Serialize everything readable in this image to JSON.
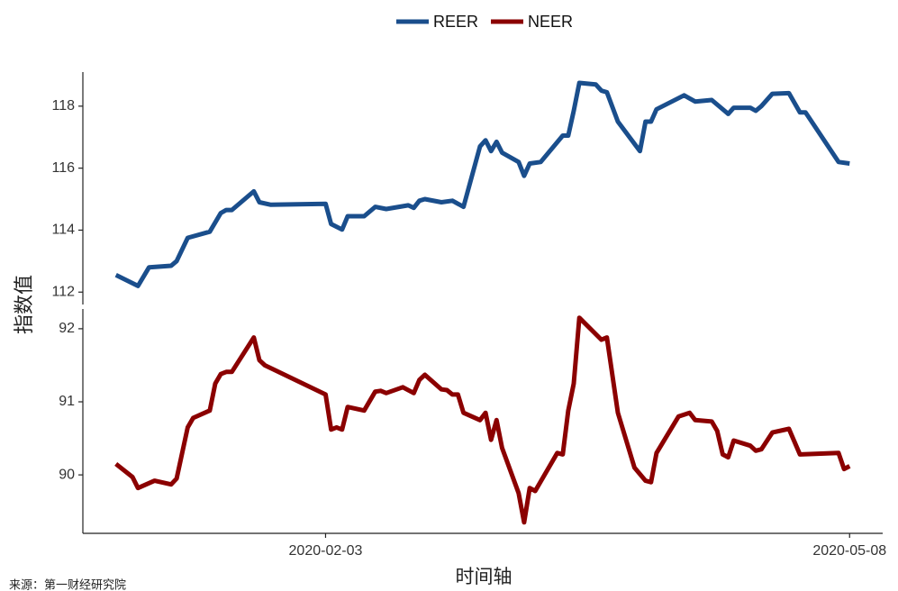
{
  "legend_position": "top",
  "ylabel": "指数值",
  "xlabel": "时间轴",
  "source": "来源：第一财经研究院",
  "chart_data": [
    {
      "type": "line",
      "xlim": [
        "2019-12-21",
        "2020-05-14"
      ],
      "ylim": [
        111.6,
        119.1
      ],
      "yticks": [
        112,
        114,
        116,
        118
      ],
      "x": [
        "2019-12-27",
        "2019-12-31",
        "2020-01-02",
        "2020-01-06",
        "2020-01-07",
        "2020-01-09",
        "2020-01-13",
        "2020-01-15",
        "2020-01-16",
        "2020-01-17",
        "2020-01-21",
        "2020-01-22",
        "2020-01-24",
        "2020-02-03",
        "2020-02-04",
        "2020-02-06",
        "2020-02-07",
        "2020-02-10",
        "2020-02-12",
        "2020-02-14",
        "2020-02-18",
        "2020-02-19",
        "2020-02-20",
        "2020-02-21",
        "2020-02-24",
        "2020-02-26",
        "2020-02-28",
        "2020-03-02",
        "2020-03-03",
        "2020-03-04",
        "2020-03-05",
        "2020-03-06",
        "2020-03-09",
        "2020-03-10",
        "2020-03-11",
        "2020-03-13",
        "2020-03-17",
        "2020-03-18",
        "2020-03-19",
        "2020-03-20",
        "2020-03-23",
        "2020-03-24",
        "2020-03-25",
        "2020-03-27",
        "2020-03-31",
        "2020-04-01",
        "2020-04-02",
        "2020-04-03",
        "2020-04-08",
        "2020-04-10",
        "2020-04-13",
        "2020-04-16",
        "2020-04-17",
        "2020-04-20",
        "2020-04-21",
        "2020-04-22",
        "2020-04-24",
        "2020-04-27",
        "2020-04-29",
        "2020-04-30",
        "2020-05-06",
        "2020-05-08"
      ],
      "series": [
        {
          "name": "REER",
          "color": "#1a4e8c",
          "values": [
            112.55,
            112.2,
            112.8,
            112.85,
            113,
            113.75,
            113.95,
            114.55,
            114.65,
            114.65,
            115.25,
            114.9,
            114.82,
            114.85,
            114.2,
            114.02,
            114.45,
            114.45,
            114.75,
            114.68,
            114.8,
            114.72,
            114.95,
            115,
            114.9,
            114.95,
            114.75,
            116.7,
            116.9,
            116.55,
            116.85,
            116.5,
            116.2,
            115.75,
            116.15,
            116.2,
            117.05,
            117.05,
            117.85,
            118.75,
            118.7,
            118.5,
            118.45,
            117.5,
            116.55,
            117.5,
            117.5,
            117.9,
            118.35,
            118.15,
            118.2,
            117.75,
            117.95,
            117.95,
            117.85,
            118,
            118.4,
            118.42,
            117.8,
            117.8,
            116.2,
            116.15
          ]
        }
      ]
    },
    {
      "type": "line",
      "xlim": [
        "2019-12-21",
        "2020-05-14"
      ],
      "xticks": [
        "2020-02-03",
        "2020-05-08"
      ],
      "ylim": [
        89.2,
        92.27
      ],
      "yticks": [
        90,
        91,
        92
      ],
      "x": [
        "2019-12-27",
        "2019-12-30",
        "2019-12-31",
        "2020-01-03",
        "2020-01-06",
        "2020-01-07",
        "2020-01-09",
        "2020-01-10",
        "2020-01-13",
        "2020-01-14",
        "2020-01-15",
        "2020-01-16",
        "2020-01-17",
        "2020-01-21",
        "2020-01-22",
        "2020-01-23",
        "2020-02-03",
        "2020-02-04",
        "2020-02-05",
        "2020-02-06",
        "2020-02-07",
        "2020-02-10",
        "2020-02-12",
        "2020-02-13",
        "2020-02-14",
        "2020-02-17",
        "2020-02-19",
        "2020-02-20",
        "2020-02-21",
        "2020-02-24",
        "2020-02-25",
        "2020-02-26",
        "2020-02-27",
        "2020-02-28",
        "2020-03-02",
        "2020-03-03",
        "2020-03-04",
        "2020-03-05",
        "2020-03-06",
        "2020-03-09",
        "2020-03-10",
        "2020-03-11",
        "2020-03-12",
        "2020-03-16",
        "2020-03-17",
        "2020-03-18",
        "2020-03-19",
        "2020-03-20",
        "2020-03-24",
        "2020-03-25",
        "2020-03-27",
        "2020-03-30",
        "2020-04-01",
        "2020-04-02",
        "2020-04-03",
        "2020-04-07",
        "2020-04-09",
        "2020-04-10",
        "2020-04-13",
        "2020-04-14",
        "2020-04-15",
        "2020-04-16",
        "2020-04-17",
        "2020-04-20",
        "2020-04-21",
        "2020-04-22",
        "2020-04-24",
        "2020-04-27",
        "2020-04-29",
        "2020-05-06",
        "2020-05-07",
        "2020-05-08"
      ],
      "series": [
        {
          "name": "NEER",
          "color": "#8b0000",
          "values": [
            90.15,
            89.97,
            89.82,
            89.92,
            89.87,
            89.95,
            90.65,
            90.78,
            90.88,
            91.25,
            91.38,
            91.41,
            91.41,
            91.88,
            91.57,
            91.5,
            91.1,
            90.62,
            90.65,
            90.62,
            90.93,
            90.88,
            91.14,
            91.15,
            91.12,
            91.2,
            91.12,
            91.3,
            91.37,
            91.17,
            91.16,
            91.1,
            91.1,
            90.85,
            90.75,
            90.85,
            90.48,
            90.75,
            90.37,
            89.75,
            89.35,
            89.82,
            89.78,
            90.3,
            90.28,
            90.88,
            91.25,
            92.15,
            91.85,
            91.88,
            90.85,
            90.1,
            89.92,
            89.9,
            90.3,
            90.8,
            90.85,
            90.75,
            90.73,
            90.6,
            90.28,
            90.24,
            90.47,
            90.4,
            90.33,
            90.35,
            90.58,
            90.63,
            90.28,
            90.3,
            90.08,
            90.12
          ]
        }
      ]
    }
  ]
}
